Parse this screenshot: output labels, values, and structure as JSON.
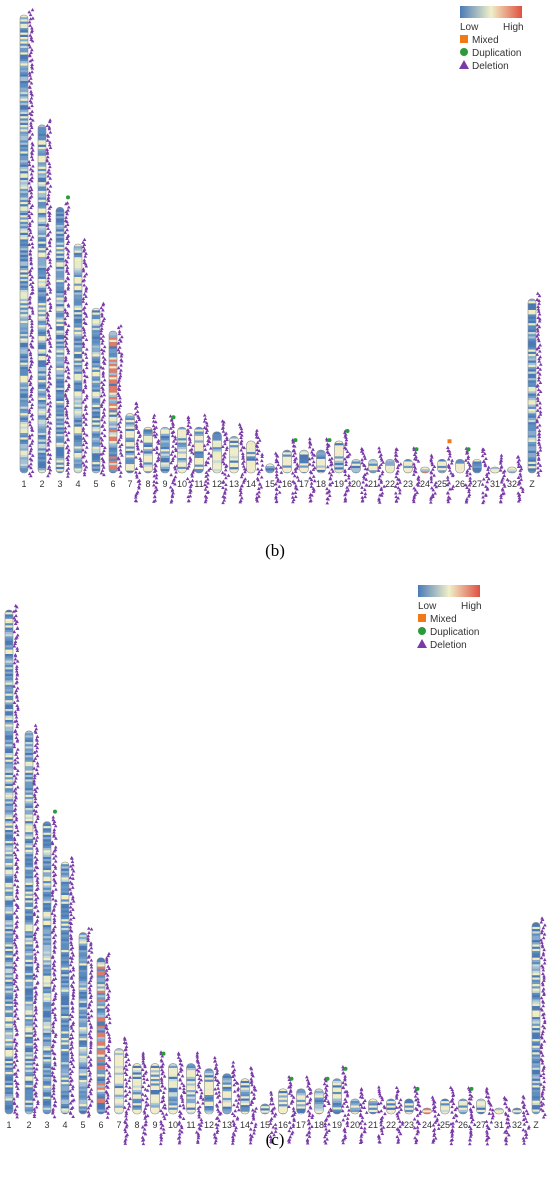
{
  "panels": [
    {
      "id": "b",
      "label": "(b)",
      "legend": {
        "gradient_low_label": "Low",
        "gradient_high_label": "High",
        "gradient_colors": [
          "#4a7ab8",
          "#f0f0c8",
          "#e05040"
        ],
        "items": [
          {
            "label": "Mixed",
            "symbol": "square",
            "color": "#f07a18"
          },
          {
            "label": "Duplication",
            "symbol": "circle",
            "color": "#2a9a3a"
          },
          {
            "label": "Deletion",
            "symbol": "triangle",
            "color": "#7a3aa8"
          }
        ]
      },
      "chromosomes": [
        "1",
        "2",
        "3",
        "4",
        "5",
        "6",
        "7",
        "8",
        "9",
        "10",
        "11",
        "12",
        "13",
        "14",
        "15",
        "16",
        "17",
        "18",
        "19",
        "20",
        "21",
        "22",
        "23",
        "24",
        "25",
        "26",
        "27",
        "31",
        "32",
        "Z"
      ],
      "relative_lengths": [
        1.0,
        0.76,
        0.58,
        0.5,
        0.36,
        0.31,
        0.13,
        0.1,
        0.1,
        0.1,
        0.1,
        0.09,
        0.08,
        0.07,
        0.02,
        0.05,
        0.05,
        0.05,
        0.07,
        0.03,
        0.03,
        0.03,
        0.03,
        0.01,
        0.03,
        0.03,
        0.03,
        0.01,
        0.01,
        0.38
      ]
    },
    {
      "id": "c",
      "label": "(c)",
      "legend": {
        "gradient_low_label": "Low",
        "gradient_high_label": "High",
        "gradient_colors": [
          "#4a7ab8",
          "#f0f0c8",
          "#e05040"
        ],
        "items": [
          {
            "label": "Mixed",
            "symbol": "square",
            "color": "#f07a18"
          },
          {
            "label": "Duplication",
            "symbol": "circle",
            "color": "#2a9a3a"
          },
          {
            "label": "Deletion",
            "symbol": "triangle",
            "color": "#7a3aa8"
          }
        ]
      },
      "chromosomes": [
        "1",
        "2",
        "3",
        "4",
        "5",
        "6",
        "7",
        "8",
        "9",
        "10",
        "11",
        "12",
        "13",
        "14",
        "15",
        "16",
        "17",
        "18",
        "19",
        "20",
        "21",
        "22",
        "23",
        "24",
        "25",
        "26",
        "27",
        "31",
        "32",
        "Z"
      ],
      "relative_lengths": [
        1.0,
        0.76,
        0.58,
        0.5,
        0.36,
        0.31,
        0.13,
        0.1,
        0.1,
        0.1,
        0.1,
        0.09,
        0.08,
        0.07,
        0.02,
        0.05,
        0.05,
        0.05,
        0.07,
        0.03,
        0.03,
        0.03,
        0.03,
        0.01,
        0.03,
        0.03,
        0.03,
        0.01,
        0.01,
        0.38
      ]
    }
  ]
}
